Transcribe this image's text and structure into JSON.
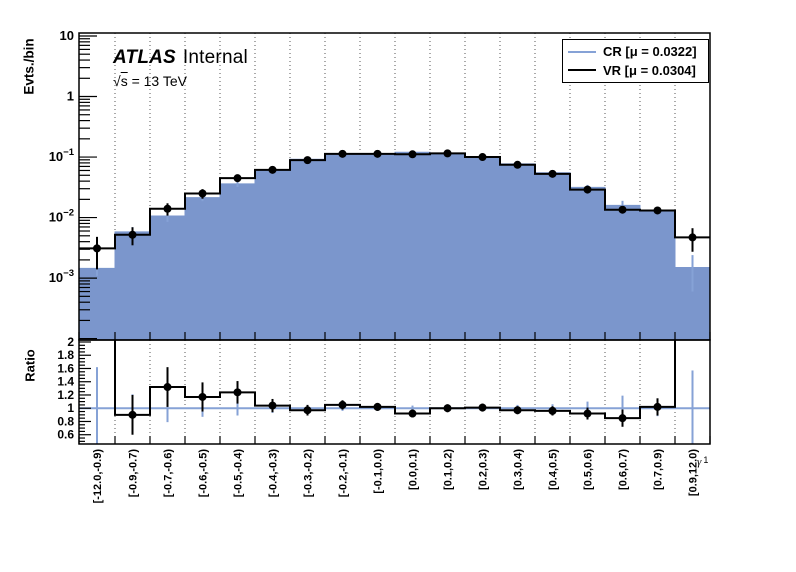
{
  "figure": {
    "experiment_label": "ATLAS",
    "experiment_sublabel": "Internal",
    "energy_prefix": "√",
    "energy_s": "s",
    "energy_rest": " = 13 TeV",
    "colors": {
      "cr_fill": "#7b96cc",
      "cr_line": "#86a2d6",
      "vr_line": "#000000",
      "grid": "#555555"
    }
  },
  "legend": {
    "entries": [
      {
        "name": "CR",
        "label": "CR [μ = 0.0322]",
        "color": "#86a2d6"
      },
      {
        "name": "VR",
        "label": "VR [μ = 0.0304]",
        "color": "#000000"
      }
    ]
  },
  "chart_data": {
    "type": "bar",
    "subtype": "histogram_with_ratio",
    "categories": [
      "[-12.0,-0.9)",
      "[-0.9,-0.7)",
      "[-0.7,-0.6)",
      "[-0.6,-0.5)",
      "[-0.5,-0.4)",
      "[-0.4,-0.3)",
      "[-0.3,-0.2)",
      "[-0.2,-0.1)",
      "[-0.1,0.0)",
      "[0.0,0.1)",
      "[0.1,0.2)",
      "[0.2,0.3)",
      "[0.3,0.4)",
      "[0.4,0.5)",
      "[0.5,0.6)",
      "[0.6,0.7)",
      "[0.7,0.9)",
      "[0.9,12.0)"
    ],
    "x_axis": {
      "title_symbol": "γ",
      "title_sub": "1"
    },
    "main_panel": {
      "ylabel": "Evts./bin",
      "yscale": "log",
      "ylim": [
        9.5e-05,
        11.2
      ],
      "grid_x": true,
      "yticks": [
        {
          "v": 10,
          "base": "10",
          "exp": ""
        },
        {
          "v": 1,
          "base": "1",
          "exp": ""
        },
        {
          "v": 0.1,
          "base": "10",
          "exp": "−1"
        },
        {
          "v": 0.01,
          "base": "10",
          "exp": "−2"
        },
        {
          "v": 0.001,
          "base": "10",
          "exp": "−3"
        }
      ],
      "series": [
        {
          "name": "CR",
          "style": "filled",
          "values": [
            0.00145,
            0.0058,
            0.0106,
            0.0214,
            0.036,
            0.059,
            0.092,
            0.108,
            0.111,
            0.12,
            0.115,
            0.099,
            0.077,
            0.055,
            0.0315,
            0.0159,
            0.0128,
            0.0015
          ],
          "errors_rel": [
            0.25,
            0.2,
            0.2,
            0.13,
            0.11,
            0.07,
            0.05,
            0.04,
            0.04,
            0.04,
            0.04,
            0.04,
            0.05,
            0.06,
            0.1,
            0.19,
            0.12,
            0.6
          ]
        },
        {
          "name": "VR",
          "style": "points",
          "values": [
            0.0031,
            0.0052,
            0.014,
            0.025,
            0.0448,
            0.0615,
            0.089,
            0.113,
            0.113,
            0.111,
            0.115,
            0.1,
            0.0745,
            0.0528,
            0.029,
            0.0135,
            0.0131,
            0.0047
          ],
          "errors_rel": [
            0.55,
            0.33,
            0.23,
            0.18,
            0.14,
            0.09,
            0.075,
            0.065,
            0.06,
            0.06,
            0.06,
            0.06,
            0.065,
            0.07,
            0.09,
            0.13,
            0.12,
            0.42
          ]
        }
      ]
    },
    "ratio_panel": {
      "ylabel": "Ratio",
      "ylim": [
        0.46,
        2.03
      ],
      "yticks": [
        0.6,
        0.8,
        1,
        1.2,
        1.4,
        1.6,
        1.8,
        2
      ],
      "ref_line": 1,
      "values": [
        2.14,
        0.9,
        1.32,
        1.17,
        1.24,
        1.04,
        0.97,
        1.05,
        1.02,
        0.92,
        1.0,
        1.01,
        0.97,
        0.96,
        0.92,
        0.85,
        1.02,
        3.1
      ],
      "errors": [
        0,
        0.3,
        0.3,
        0.22,
        0.17,
        0.1,
        0.08,
        0.07,
        0.06,
        0.06,
        0.06,
        0.06,
        0.06,
        0.07,
        0.09,
        0.13,
        0.13,
        0
      ],
      "ref_errors_rel": [
        0.62,
        0.21,
        0.21,
        0.13,
        0.11,
        0.07,
        0.05,
        0.04,
        0.04,
        0.04,
        0.04,
        0.04,
        0.05,
        0.06,
        0.1,
        0.19,
        0.12,
        0.57
      ]
    }
  }
}
